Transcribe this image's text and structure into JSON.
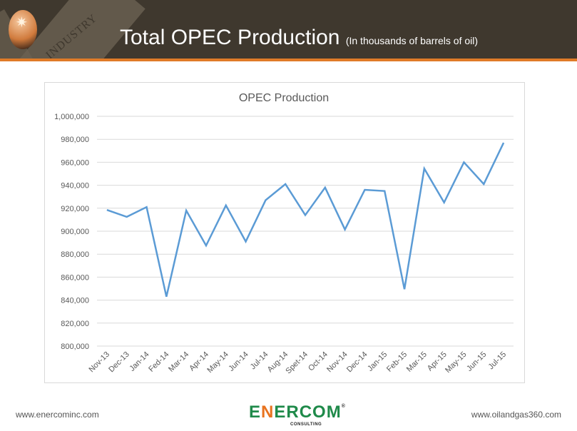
{
  "header": {
    "title": "Total OPEC Production",
    "subtitle": "(In thousands of barrels of oil)",
    "background_word": "INDUSTRY"
  },
  "footer": {
    "left": "www.enercominc.com",
    "right": "www.oilandgas360.com",
    "logo": "ENERCOM",
    "logo_sub": "CONSULTING"
  },
  "chart_data": {
    "type": "line",
    "title": "OPEC Production",
    "xlabel": "",
    "ylabel": "",
    "ylim": [
      800000,
      1000000
    ],
    "yticks": [
      800000,
      820000,
      840000,
      860000,
      880000,
      900000,
      920000,
      940000,
      960000,
      980000,
      1000000
    ],
    "ytick_labels": [
      "800,000",
      "820,000",
      "840,000",
      "860,000",
      "880,000",
      "900,000",
      "920,000",
      "940,000",
      "960,000",
      "980,000",
      "1,000,000"
    ],
    "grid": true,
    "categories": [
      "Nov-13",
      "Dec-13",
      "Jan-14",
      "Fed-14",
      "Mar-14",
      "Apr-14",
      "May-14",
      "Jun-14",
      "Jul-14",
      "Aug-14",
      "Spet-14",
      "Oct-14",
      "Nov-14",
      "Dec-14",
      "Jan-15",
      "Feb-15",
      "Mar-15",
      "Apr-15",
      "May-15",
      "Jun-15",
      "Jul-15"
    ],
    "series": [
      {
        "name": "OPEC Production",
        "color": "#5b9bd5",
        "values": [
          918500,
          912500,
          921000,
          843000,
          918000,
          887500,
          922500,
          891000,
          927000,
          941000,
          914000,
          938000,
          901500,
          936000,
          935000,
          849500,
          954500,
          925000,
          960000,
          941000,
          977000
        ]
      }
    ]
  }
}
